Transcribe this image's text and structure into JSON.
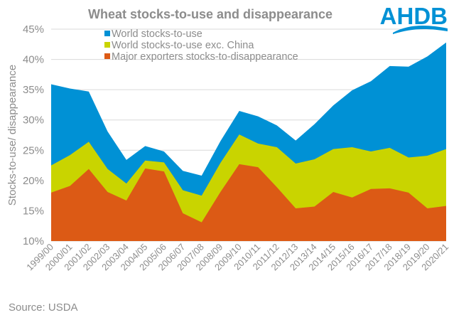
{
  "chart_data": {
    "type": "area",
    "title": "Wheat stocks-to-use and disappearance",
    "xlabel": "",
    "ylabel": "Stocks-to-use/ disappearance",
    "ylim": [
      10,
      45
    ],
    "yticks": [
      "10%",
      "15%",
      "20%",
      "25%",
      "30%",
      "35%",
      "40%",
      "45%"
    ],
    "ytick_values": [
      10,
      15,
      20,
      25,
      30,
      35,
      40,
      45
    ],
    "grid": true,
    "legend_position": "top-left",
    "categories": [
      "1999/00",
      "2000/01",
      "2001/02",
      "2002/03",
      "2003/04",
      "2004/05",
      "2005/06",
      "2006/07",
      "2007/08",
      "2008/09",
      "2009/10",
      "2010/11",
      "2011/12",
      "2012/13",
      "2013/14",
      "2014/15",
      "2015/16",
      "2016/17",
      "2017/18",
      "2018/19",
      "2019/20",
      "2020/21"
    ],
    "series": [
      {
        "name": "World stocks-to-use",
        "color": "#0091d5",
        "values": [
          35.9,
          35.2,
          34.7,
          28.1,
          23.4,
          25.7,
          24.8,
          21.6,
          20.8,
          26.5,
          31.5,
          30.6,
          29.1,
          26.6,
          29.3,
          32.4,
          34.9,
          36.4,
          38.9,
          38.8,
          40.5,
          42.8
        ]
      },
      {
        "name": "World stocks-to-use exc. China",
        "color": "#c9d400",
        "values": [
          22.5,
          24.2,
          26.4,
          21.9,
          19.5,
          23.3,
          23.0,
          18.4,
          17.5,
          22.9,
          27.6,
          26.1,
          25.5,
          22.8,
          23.5,
          25.2,
          25.5,
          24.8,
          25.4,
          23.8,
          24.1,
          25.2
        ]
      },
      {
        "name": "Major exporters stocks-to-disappearance",
        "color": "#dc5a15",
        "values": [
          18.0,
          19.1,
          21.9,
          18.1,
          16.7,
          22.0,
          21.5,
          14.6,
          13.1,
          18.1,
          22.7,
          22.2,
          18.9,
          15.4,
          15.7,
          18.1,
          17.2,
          18.6,
          18.7,
          18.0,
          15.4,
          15.8
        ]
      }
    ]
  },
  "logo": {
    "text": "AHDB",
    "color": "#0091d5"
  },
  "footer": {
    "source": "Source: USDA"
  },
  "colors": {
    "text": "#8c8c8c",
    "grid": "#d9d9d9"
  }
}
